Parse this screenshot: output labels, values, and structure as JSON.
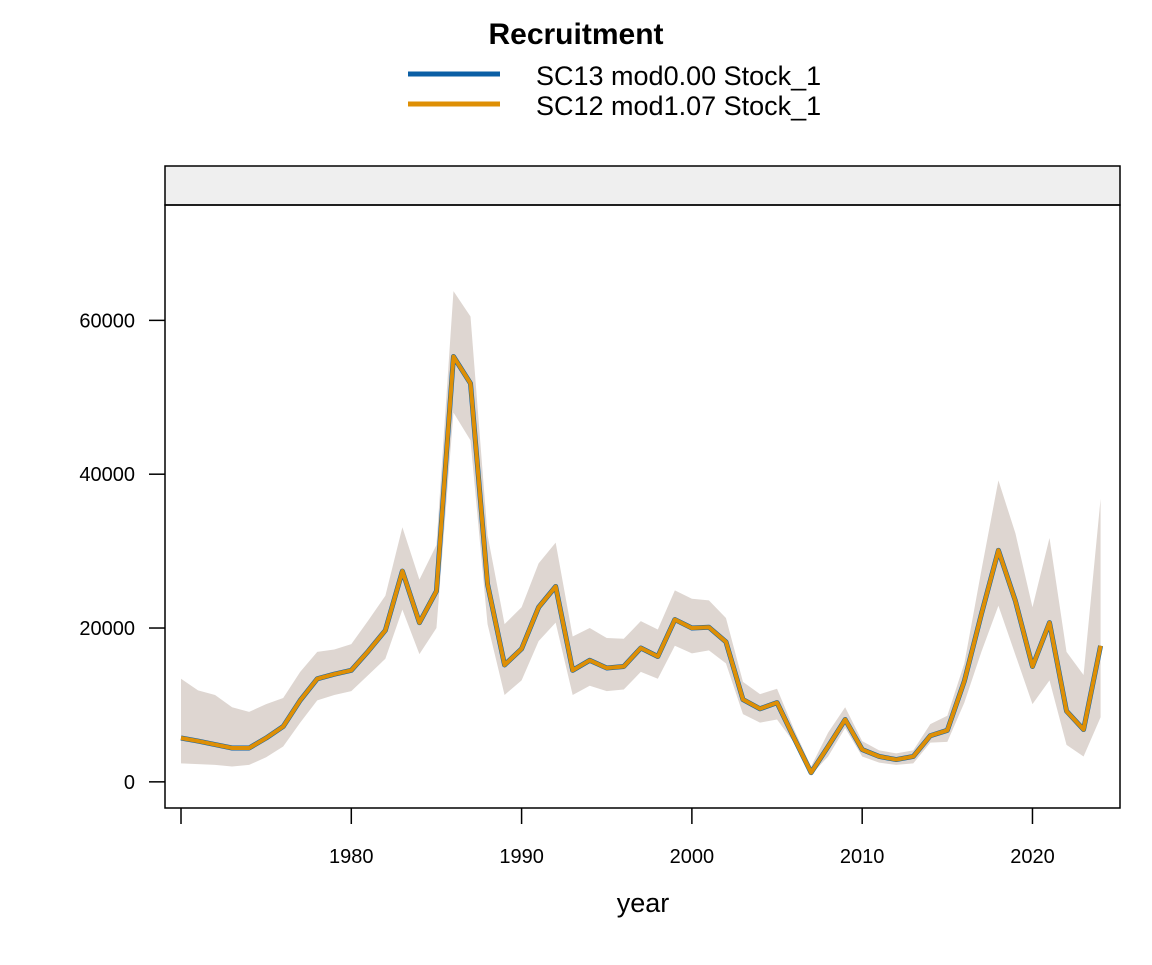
{
  "chart_data": {
    "type": "line",
    "title": "Recruitment",
    "xlabel": "year",
    "ylabel": "",
    "xlim": [
      1969.06,
      2025.14
    ],
    "ylim": [
      -3400,
      75000
    ],
    "x_ticks": [
      1970,
      1980,
      1990,
      2000,
      2010,
      2020
    ],
    "x_tick_labels": [
      "",
      "1980",
      "1990",
      "2000",
      "2010",
      "2020"
    ],
    "y_ticks": [
      0,
      20000,
      40000,
      60000
    ],
    "y_tick_labels": [
      "0",
      "20000",
      "40000",
      "60000"
    ],
    "grid": false,
    "legend_placement": "top",
    "strip_text": "",
    "colors": {
      "band": "#ded6d1",
      "strip": "#efefef"
    },
    "x": [
      1970,
      1971,
      1972,
      1973,
      1974,
      1975,
      1976,
      1977,
      1978,
      1979,
      1980,
      1981,
      1982,
      1983,
      1984,
      1985,
      1986,
      1987,
      1988,
      1989,
      1990,
      1991,
      1992,
      1993,
      1994,
      1995,
      1996,
      1997,
      1998,
      1999,
      2000,
      2001,
      2002,
      2003,
      2004,
      2005,
      2006,
      2007,
      2008,
      2009,
      2010,
      2011,
      2012,
      2013,
      2014,
      2015,
      2016,
      2017,
      2018,
      2019,
      2020,
      2021,
      2022,
      2023,
      2024
    ],
    "series": [
      {
        "name": "SC13 mod0.00 Stock_1",
        "color": "#0b5fa5",
        "values": [
          5700,
          5300,
          4850,
          4400,
          4400,
          5700,
          7200,
          10600,
          13400,
          14000,
          14500,
          17000,
          19700,
          27400,
          20700,
          24800,
          55300,
          51800,
          25700,
          15200,
          17300,
          22700,
          25400,
          14500,
          15800,
          14800,
          15000,
          17400,
          16300,
          21100,
          20000,
          20100,
          18200,
          10700,
          9500,
          10300,
          5700,
          1200,
          4600,
          8100,
          4200,
          3300,
          2900,
          3300,
          6000,
          6700,
          13100,
          21800,
          30100,
          23500,
          15000,
          20700,
          9200,
          6800,
          17700
        ]
      },
      {
        "name": "SC12 mod1.07 Stock_1",
        "color": "#de8f05",
        "values": [
          5700,
          5300,
          4850,
          4400,
          4400,
          5700,
          7200,
          10600,
          13400,
          14000,
          14500,
          17000,
          19700,
          27400,
          20700,
          24800,
          55300,
          51800,
          25700,
          15200,
          17300,
          22700,
          25400,
          14500,
          15800,
          14800,
          15000,
          17400,
          16300,
          21100,
          20000,
          20100,
          18200,
          10700,
          9500,
          10300,
          5700,
          1200,
          4600,
          8100,
          4200,
          3300,
          2900,
          3300,
          6000,
          6700,
          13100,
          21800,
          30100,
          23500,
          15000,
          20700,
          9200,
          6800,
          17700
        ]
      }
    ],
    "band_upper": [
      13400,
      11900,
      11300,
      9700,
      9100,
      10100,
      10900,
      14300,
      16900,
      17200,
      17900,
      21000,
      24200,
      33100,
      26300,
      30800,
      63800,
      60500,
      32100,
      20500,
      22700,
      28400,
      31100,
      18900,
      20000,
      18700,
      18600,
      20900,
      19800,
      24900,
      23800,
      23600,
      21300,
      13000,
      11400,
      12100,
      6800,
      2000,
      6400,
      9700,
      5300,
      4100,
      3700,
      4100,
      7500,
      8600,
      15400,
      27500,
      39200,
      32300,
      22700,
      31700,
      16900,
      13900,
      36800
    ],
    "band_lower": [
      2400,
      2300,
      2200,
      2000,
      2200,
      3200,
      4600,
      7700,
      10600,
      11300,
      11800,
      13900,
      16000,
      22400,
      16600,
      20000,
      48000,
      44400,
      20500,
      11300,
      13200,
      18300,
      20700,
      11300,
      12500,
      11800,
      12000,
      14300,
      13400,
      17700,
      16700,
      17100,
      15400,
      8800,
      7700,
      8100,
      5100,
      900,
      3300,
      7000,
      3300,
      2500,
      2200,
      2400,
      5100,
      5200,
      10300,
      16900,
      22900,
      16500,
      10100,
      13200,
      4800,
      3300,
      8400
    ]
  }
}
